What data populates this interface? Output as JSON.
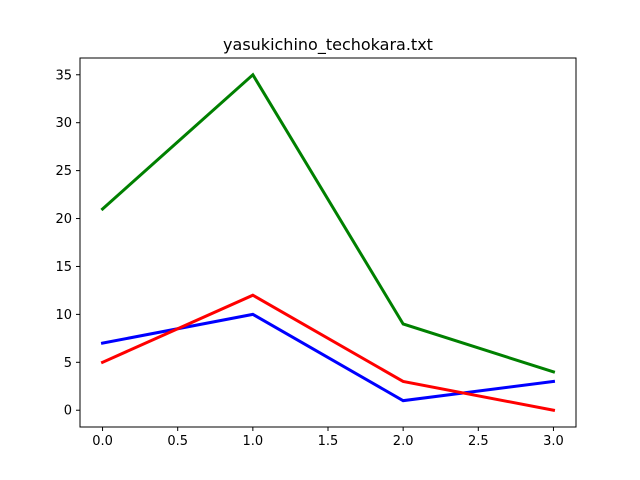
{
  "chart_data": {
    "type": "line",
    "title": "yasukichino_techokara.txt",
    "xlabel": "",
    "ylabel": "",
    "x": [
      0,
      1,
      2,
      3
    ],
    "xlim": [
      -0.15,
      3.15
    ],
    "ylim": [
      -1.75,
      36.75
    ],
    "xticks": [
      "0.0",
      "0.5",
      "1.0",
      "1.5",
      "2.0",
      "2.5",
      "3.0"
    ],
    "yticks": [
      "0",
      "5",
      "10",
      "15",
      "20",
      "25",
      "30",
      "35"
    ],
    "grid": false,
    "series": [
      {
        "color": "#0000ff",
        "values": [
          7,
          10,
          1,
          3
        ]
      },
      {
        "color": "#ff0000",
        "values": [
          5,
          12,
          3,
          0
        ]
      },
      {
        "color": "#008000",
        "values": [
          21,
          35,
          9,
          4
        ]
      }
    ]
  }
}
